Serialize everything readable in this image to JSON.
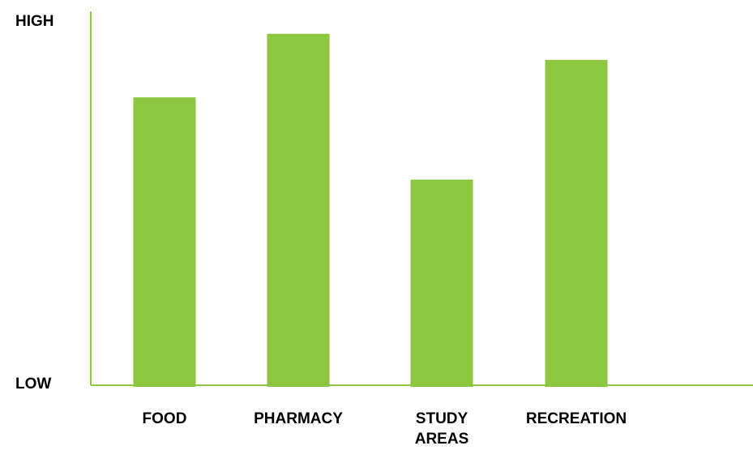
{
  "chart_data": {
    "type": "bar",
    "categories": [
      [
        "FOOD"
      ],
      [
        "PHARMACY"
      ],
      [
        "STUDY",
        "AREAS"
      ],
      [
        "RECREATION"
      ]
    ],
    "values": [
      0.77,
      0.94,
      0.55,
      0.87
    ],
    "ylim": [
      0,
      1
    ],
    "y_axis_labels": {
      "high": "HIGH",
      "low": "LOW"
    },
    "grid": false,
    "legend": "none",
    "colors": {
      "bar": "#8dc63f",
      "axis": "#8dc63f",
      "text": "#000000"
    }
  }
}
